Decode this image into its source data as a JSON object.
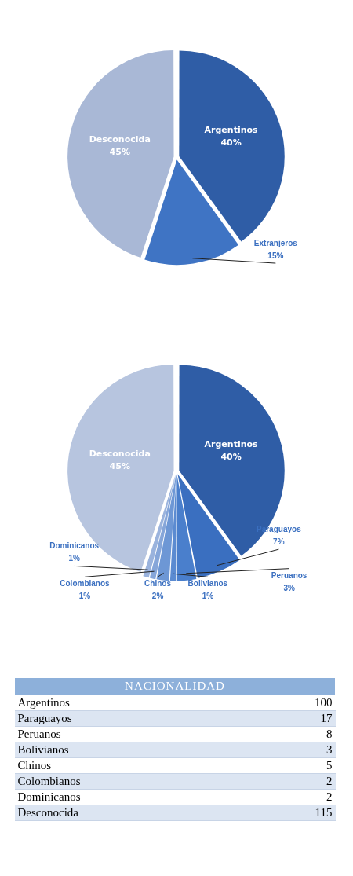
{
  "chart_data": [
    {
      "type": "pie",
      "categories": [
        "Argentinos",
        "Extranjeros",
        "Desconocida"
      ],
      "values": [
        40,
        15,
        45
      ],
      "value_labels": [
        "40%",
        "15%",
        "45%"
      ],
      "colors": [
        "#2f5da6",
        "#3f74c4",
        "#a9b8d6"
      ],
      "legend": false
    },
    {
      "type": "pie",
      "categories": [
        "Argentinos",
        "Paraguayos",
        "Peruanos",
        "Bolivianos",
        "Chinos",
        "Colombianos",
        "Dominicanos",
        "Desconocida"
      ],
      "values": [
        40,
        7,
        3,
        1,
        2,
        1,
        1,
        45
      ],
      "value_labels": [
        "40%",
        "7%",
        "3%",
        "1%",
        "2%",
        "1%",
        "1%",
        "45%"
      ],
      "colors": [
        "#2f5da6",
        "#3a6fc0",
        "#4a7fcc",
        "#5b8bd1",
        "#6d97d5",
        "#86a6d9",
        "#9ab3dd",
        "#b7c5df"
      ],
      "legend": false
    },
    {
      "type": "other",
      "title": "NACIONALIDAD",
      "categories": [
        "Argentinos",
        "Paraguayos",
        "Peruanos",
        "Bolivianos",
        "Chinos",
        "Colombianos",
        "Dominicanos",
        "Desconocida"
      ],
      "values": [
        100,
        17,
        8,
        3,
        5,
        2,
        2,
        115
      ],
      "data_labels": true
    }
  ]
}
